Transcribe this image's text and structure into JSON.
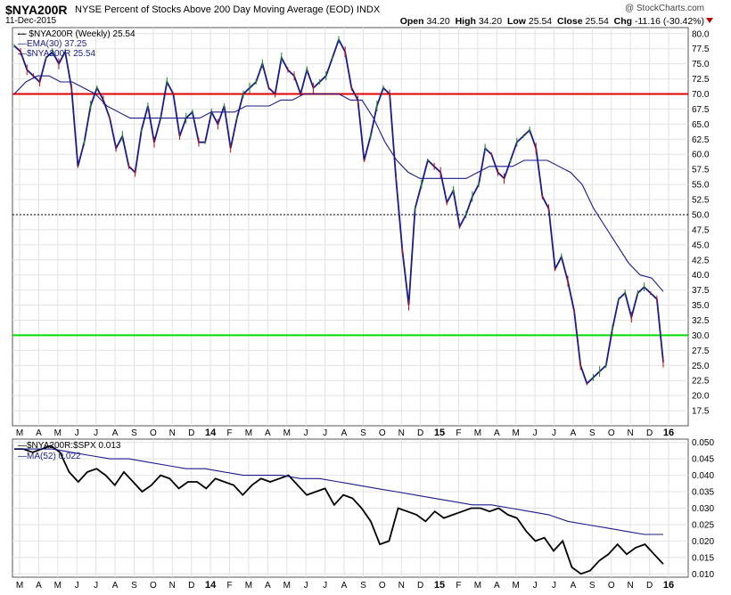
{
  "header": {
    "symbol": "$NYA200R",
    "description": "NYSE Percent of Stocks Above 200 Day Moving Average (EOD)",
    "exchange": "INDX",
    "date": "11-Dec-2015",
    "brand": "@ StockCharts.com",
    "open_label": "Open",
    "open": "34.20",
    "high_label": "High",
    "high": "34.20",
    "low_label": "Low",
    "low": "25.54",
    "close_label": "Close",
    "close": "25.54",
    "chg_label": "Chg",
    "chg": "-11.16 (-30.42%)"
  },
  "legend_main": [
    {
      "text": "$NYA200R (Weekly) 25.54",
      "color": "#000000"
    },
    {
      "text": "EMA(30) 37.25",
      "color": "#1a1a8c"
    },
    {
      "text": "$NYA200R 25.54",
      "color": "#1a1a8c"
    }
  ],
  "legend_lower": [
    {
      "text": "$NYA200R:$SPX 0.013",
      "color": "#000000"
    },
    {
      "text": "MA(52) 0.022",
      "color": "#1a1a8c"
    }
  ],
  "chart_data": [
    {
      "type": "line",
      "title": "$NYA200R (Weekly)",
      "x_axis_labels": [
        "M",
        "A",
        "M",
        "J",
        "J",
        "A",
        "S",
        "O",
        "N",
        "D",
        "14",
        "F",
        "M",
        "A",
        "M",
        "J",
        "J",
        "A",
        "S",
        "O",
        "N",
        "D",
        "15",
        "F",
        "M",
        "A",
        "M",
        "J",
        "J",
        "A",
        "S",
        "O",
        "N",
        "D",
        "16"
      ],
      "ylim": [
        15,
        81
      ],
      "y_ticks": [
        17.5,
        20.0,
        22.5,
        25.0,
        27.5,
        30.0,
        32.5,
        35.0,
        37.5,
        40.0,
        42.5,
        45.0,
        47.5,
        50.0,
        52.5,
        55.0,
        57.5,
        60.0,
        62.5,
        65.0,
        67.5,
        70.0,
        72.5,
        75.0,
        77.5,
        80.0
      ],
      "horizontal_lines": [
        {
          "value": 70.0,
          "color": "#e00000"
        },
        {
          "value": 50.0,
          "color": "#000000",
          "style": "dotted"
        },
        {
          "value": 30.0,
          "color": "#00dd00"
        }
      ],
      "series": [
        {
          "name": "$NYA200R",
          "color": "#1a1a8c",
          "values": [
            78,
            77,
            74,
            73,
            72,
            76,
            77,
            75,
            77,
            71,
            58,
            62,
            68,
            71,
            69,
            66,
            61,
            63,
            58,
            57,
            64,
            68,
            62,
            66,
            72,
            70,
            63,
            66,
            67,
            62,
            62,
            67,
            65,
            68,
            61,
            66,
            70,
            71,
            72,
            75,
            71,
            70,
            76,
            74,
            73,
            70,
            74,
            71,
            72,
            73,
            76,
            79,
            77,
            71,
            69,
            59,
            63,
            68,
            71,
            70,
            56,
            44,
            35,
            51,
            55,
            59,
            58,
            57,
            52,
            54,
            48,
            50,
            53,
            55,
            61,
            60,
            57,
            56,
            59,
            62,
            63,
            64,
            61,
            53,
            51,
            41,
            43,
            39,
            34,
            25,
            22,
            23,
            24,
            25,
            31,
            36,
            37,
            33,
            37,
            38,
            37,
            36,
            25.54
          ]
        },
        {
          "name": "EMA(30)",
          "color": "#1a1a8c",
          "values": [
            70,
            72,
            73,
            73,
            72,
            72,
            71,
            70,
            68,
            67,
            66,
            66,
            66,
            66,
            66,
            66,
            66,
            67,
            67,
            67,
            68,
            68,
            68,
            69,
            69,
            70,
            70,
            70,
            70,
            69,
            69,
            66,
            62,
            59,
            57,
            56,
            56,
            56,
            56,
            56,
            57,
            58,
            58,
            58,
            59,
            59,
            59,
            58,
            57,
            55,
            51,
            48,
            45,
            42,
            40,
            39.5,
            37.25
          ]
        }
      ]
    },
    {
      "type": "line",
      "title": "$NYA200R:$SPX",
      "x_axis_labels": [
        "M",
        "A",
        "M",
        "J",
        "J",
        "A",
        "S",
        "O",
        "N",
        "D",
        "14",
        "F",
        "M",
        "A",
        "M",
        "J",
        "J",
        "A",
        "S",
        "O",
        "N",
        "D",
        "15",
        "F",
        "M",
        "A",
        "M",
        "J",
        "J",
        "A",
        "S",
        "O",
        "N",
        "D",
        "16"
      ],
      "ylim": [
        0.009,
        0.051
      ],
      "y_ticks": [
        0.01,
        0.015,
        0.02,
        0.025,
        0.03,
        0.035,
        0.04,
        0.045,
        0.05
      ],
      "series": [
        {
          "name": "$NYA200R:$SPX",
          "color": "#000000",
          "values": [
            0.048,
            0.048,
            0.047,
            0.048,
            0.049,
            0.047,
            0.041,
            0.038,
            0.041,
            0.042,
            0.04,
            0.037,
            0.041,
            0.038,
            0.035,
            0.037,
            0.04,
            0.039,
            0.036,
            0.038,
            0.038,
            0.036,
            0.039,
            0.038,
            0.037,
            0.034,
            0.037,
            0.039,
            0.038,
            0.039,
            0.04,
            0.037,
            0.034,
            0.035,
            0.036,
            0.031,
            0.034,
            0.033,
            0.03,
            0.026,
            0.019,
            0.02,
            0.03,
            0.029,
            0.028,
            0.026,
            0.029,
            0.027,
            0.028,
            0.029,
            0.03,
            0.03,
            0.029,
            0.03,
            0.028,
            0.027,
            0.023,
            0.02,
            0.021,
            0.017,
            0.02,
            0.012,
            0.01,
            0.011,
            0.014,
            0.016,
            0.019,
            0.016,
            0.018,
            0.019,
            0.016,
            0.013
          ]
        },
        {
          "name": "MA(52)",
          "color": "#1a1a8c",
          "values": [
            0.048,
            0.048,
            0.048,
            0.047,
            0.046,
            0.045,
            0.045,
            0.044,
            0.043,
            0.042,
            0.042,
            0.041,
            0.04,
            0.04,
            0.04,
            0.039,
            0.039,
            0.038,
            0.037,
            0.036,
            0.035,
            0.034,
            0.033,
            0.032,
            0.031,
            0.031,
            0.03,
            0.029,
            0.028,
            0.026,
            0.025,
            0.024,
            0.023,
            0.022,
            0.022
          ]
        }
      ]
    }
  ]
}
